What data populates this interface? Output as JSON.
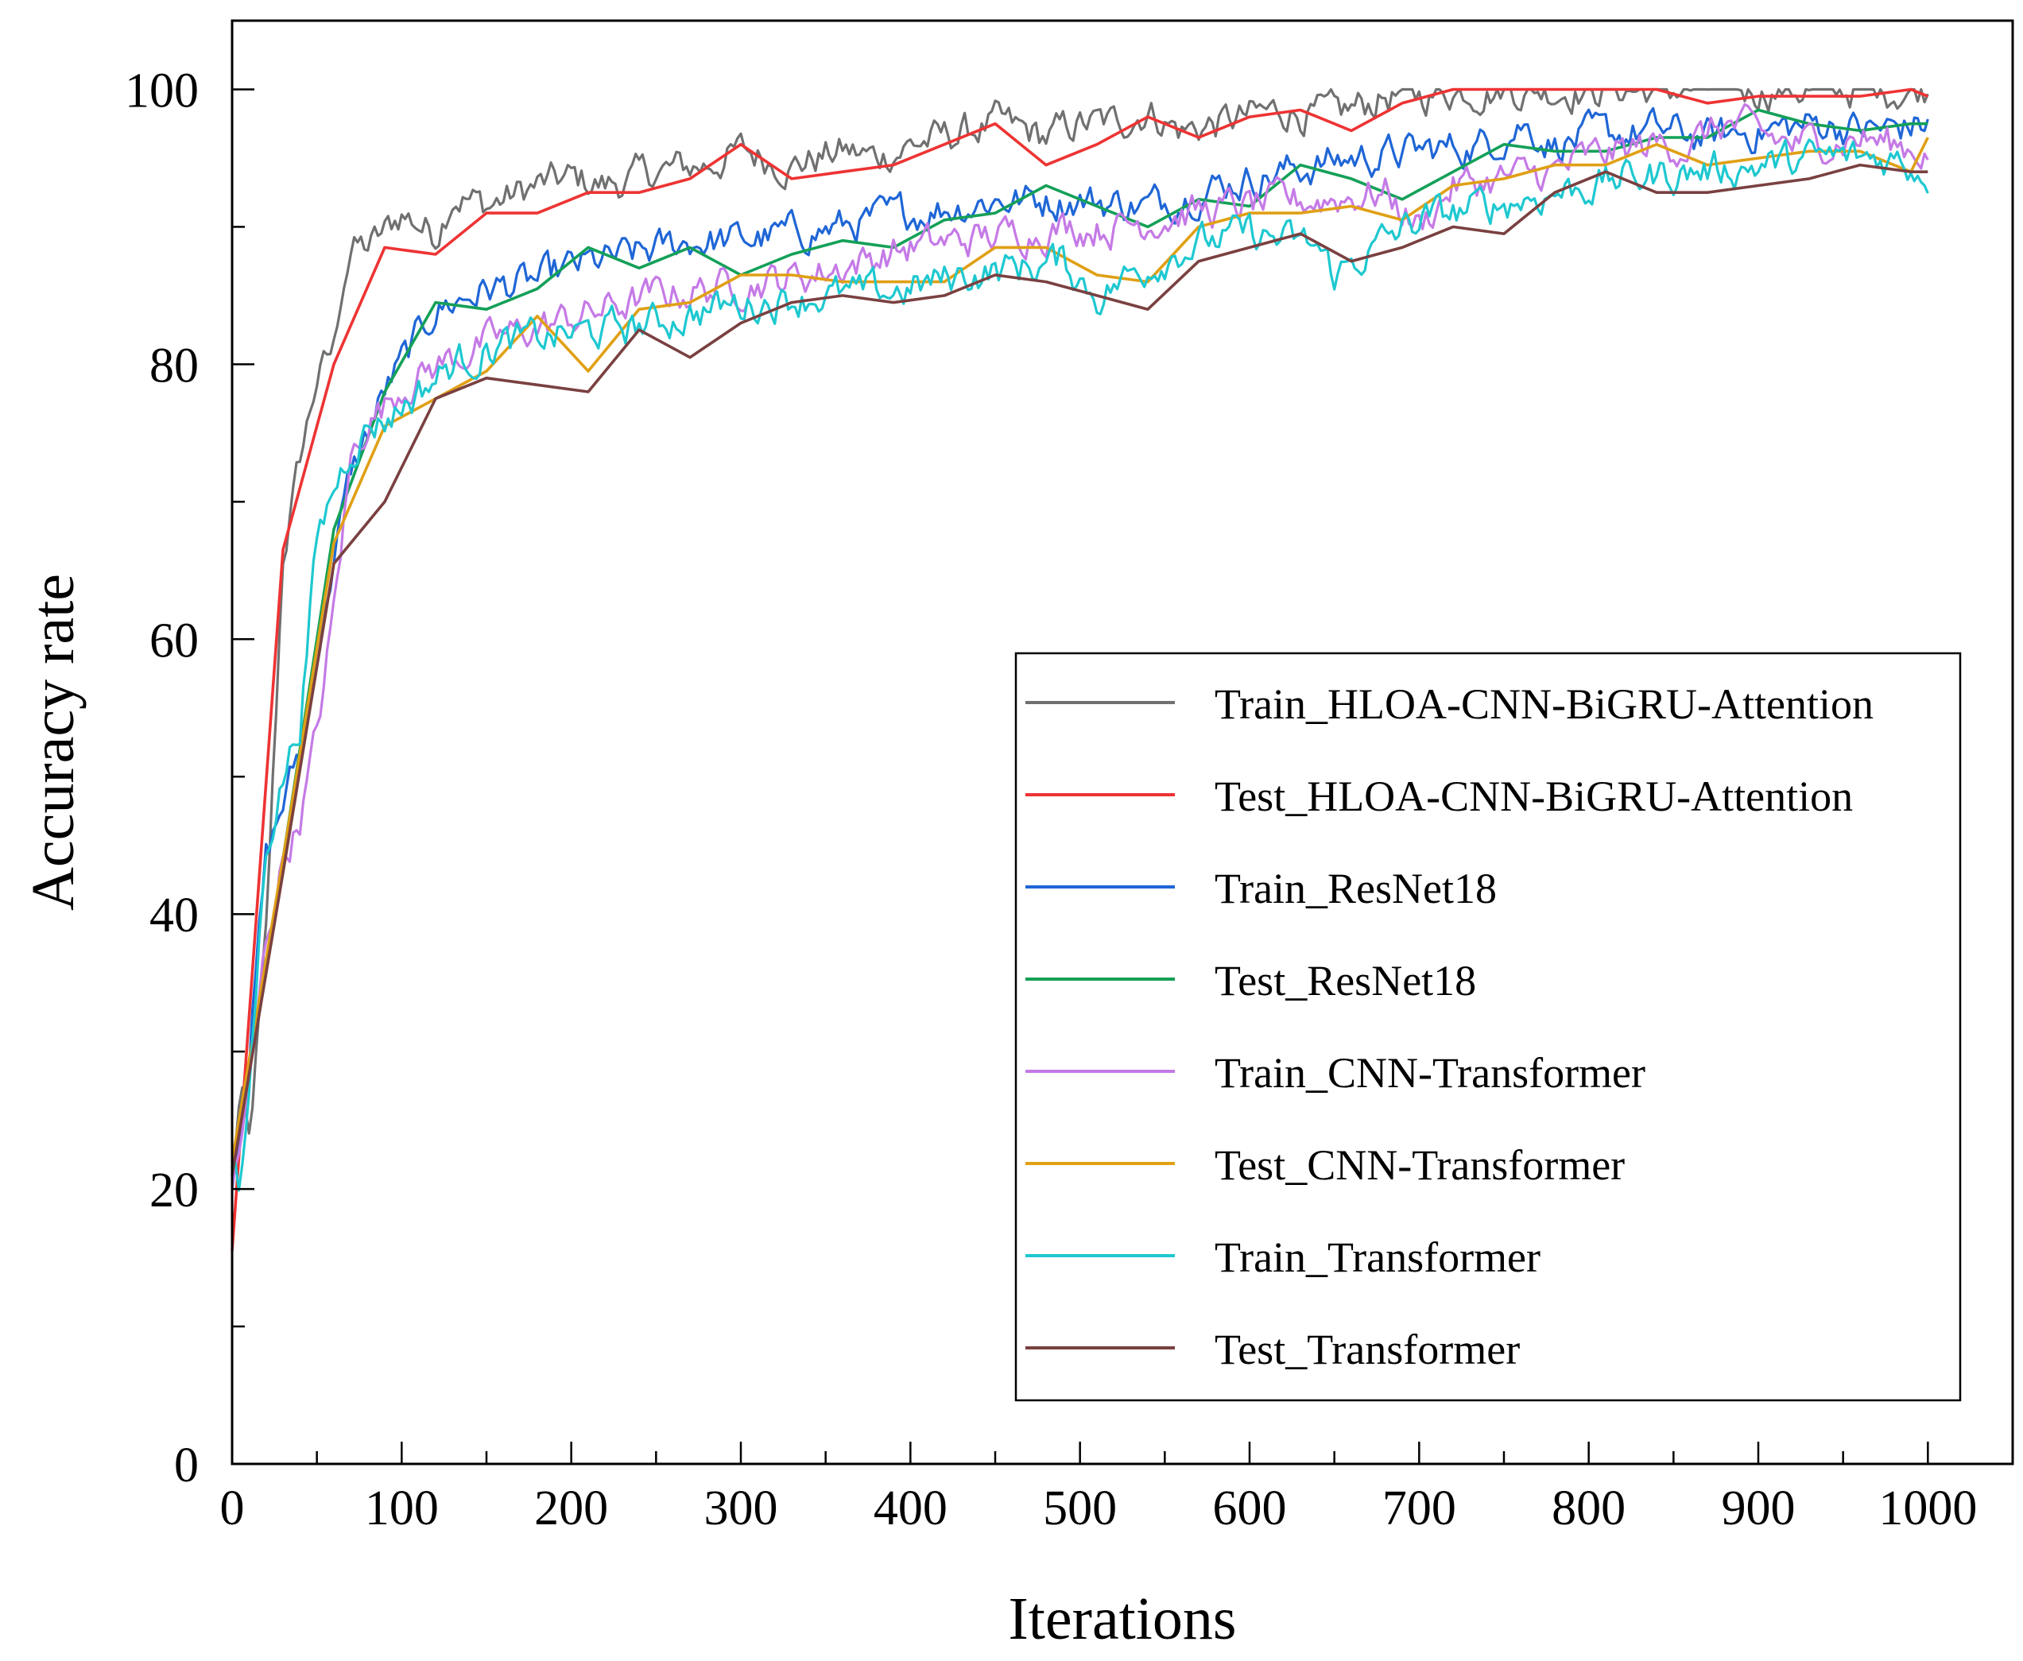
{
  "chart_data": {
    "type": "line",
    "title": "",
    "xlabel": "Iterations",
    "ylabel": "Accuracy rate",
    "xlim": [
      0,
      1050
    ],
    "ylim": [
      0,
      105
    ],
    "xticks": [
      0,
      100,
      200,
      300,
      400,
      500,
      600,
      700,
      800,
      900,
      1000
    ],
    "yticks": [
      0,
      20,
      40,
      60,
      80,
      100
    ],
    "x_tick_labels": [
      "0",
      "100",
      "200",
      "300",
      "400",
      "500",
      "600",
      "700",
      "800",
      "900",
      "1000"
    ],
    "y_tick_labels": [
      "0",
      "20",
      "40",
      "60",
      "80",
      "100"
    ],
    "grid": false,
    "legend_position": "center-right",
    "series": [
      {
        "name": "Train_HLOA-CNN-BiGRU-Attention",
        "color": "#707070",
        "x": [
          0,
          5,
          10,
          20,
          30,
          40,
          50,
          60,
          65,
          70,
          80,
          90,
          100,
          120,
          130,
          150,
          180,
          200,
          220,
          250,
          280,
          300,
          330,
          360,
          380,
          400,
          420,
          450,
          480,
          500,
          520,
          540,
          560,
          580,
          600,
          620,
          650,
          680,
          700,
          720,
          750,
          800,
          850,
          900,
          950,
          1000
        ],
        "y": [
          21,
          27,
          23,
          38,
          66,
          73,
          79,
          81,
          86,
          88.5,
          88.5,
          89.5,
          91,
          89.5,
          92.5,
          91.5,
          93,
          93.5,
          93,
          94,
          94.5,
          95.5,
          94.5,
          95.5,
          95,
          96,
          96.5,
          97.5,
          96.5,
          97.5,
          97.5,
          98.5,
          97,
          97.5,
          98,
          98.5,
          98,
          99.5,
          99.5,
          100,
          100,
          100,
          100,
          100,
          100,
          100
        ]
      },
      {
        "name": "Test_HLOA-CNN-BiGRU-Attention",
        "color": "#ee3333",
        "x": [
          0,
          30,
          60,
          90,
          120,
          150,
          180,
          210,
          240,
          270,
          300,
          330,
          360,
          390,
          420,
          450,
          480,
          510,
          540,
          570,
          600,
          630,
          660,
          690,
          720,
          750,
          780,
          810,
          840,
          870,
          900,
          930,
          960,
          990,
          1000
        ],
        "y": [
          15.5,
          66.5,
          80,
          88.5,
          88,
          91,
          91,
          92.5,
          92.5,
          93.5,
          96,
          93.5,
          94,
          94.5,
          96,
          97.5,
          94.5,
          96,
          98,
          96.5,
          98,
          98.5,
          97,
          99,
          100,
          100,
          100,
          100,
          100,
          99,
          99.5,
          99.5,
          99.5,
          100,
          99.5
        ]
      },
      {
        "name": "Train_ResNet18",
        "color": "#1f66d6",
        "x": [
          0,
          10,
          20,
          30,
          40,
          50,
          60,
          70,
          80,
          90,
          100,
          120,
          150,
          180,
          200,
          240,
          270,
          300,
          330,
          360,
          400,
          450,
          480,
          500,
          540,
          580,
          620,
          660,
          700,
          740,
          760,
          780,
          800,
          840,
          870,
          900,
          940,
          970,
          1000
        ],
        "y": [
          21,
          30,
          44,
          48,
          52,
          59,
          66,
          72,
          75,
          78,
          80,
          84,
          85.5,
          86,
          87,
          88,
          89,
          89,
          89.5,
          90,
          91,
          92,
          92,
          92,
          91.5,
          93,
          94,
          95,
          95.5,
          96,
          97.5,
          96,
          96.5,
          97,
          96.5,
          97,
          97.5,
          97,
          97.5
        ]
      },
      {
        "name": "Test_ResNet18",
        "color": "#14a058",
        "x": [
          0,
          30,
          60,
          90,
          120,
          150,
          180,
          210,
          240,
          270,
          300,
          330,
          360,
          390,
          420,
          450,
          480,
          510,
          540,
          570,
          600,
          630,
          660,
          690,
          720,
          750,
          780,
          810,
          840,
          870,
          900,
          930,
          960,
          990,
          1000
        ],
        "y": [
          21.5,
          44,
          68,
          78,
          84.5,
          84,
          85.5,
          88.5,
          87,
          88.5,
          86.5,
          88,
          89,
          88.5,
          90.5,
          91,
          93,
          91.5,
          90,
          92,
          91.5,
          94.5,
          93.5,
          92,
          94,
          96,
          95.5,
          95.5,
          96.5,
          96.5,
          98.5,
          97.5,
          97,
          97.5,
          97.5
        ]
      },
      {
        "name": "Train_CNN-Transformer",
        "color": "#c57ae6",
        "x": [
          0,
          10,
          20,
          30,
          40,
          50,
          60,
          70,
          80,
          90,
          100,
          130,
          160,
          190,
          220,
          250,
          280,
          310,
          340,
          370,
          400,
          430,
          460,
          490,
          520,
          560,
          600,
          640,
          680,
          700,
          720,
          750,
          780,
          800,
          840,
          860,
          880,
          920,
          960,
          1000
        ],
        "y": [
          20,
          27,
          38,
          44,
          47,
          53,
          62,
          73,
          76,
          77,
          78.5,
          80.5,
          82,
          83,
          84,
          85,
          85.5,
          86,
          86.5,
          87.5,
          88.5,
          89,
          89.5,
          90,
          90,
          91,
          91.5,
          92,
          92.5,
          90,
          93,
          93.5,
          94,
          95,
          96,
          96,
          97.5,
          96,
          96.5,
          95.5
        ]
      },
      {
        "name": "Test_CNN-Transformer",
        "color": "#e0a015",
        "x": [
          0,
          30,
          60,
          90,
          120,
          150,
          180,
          210,
          240,
          270,
          300,
          330,
          360,
          390,
          420,
          450,
          480,
          510,
          540,
          570,
          600,
          630,
          660,
          690,
          720,
          750,
          780,
          810,
          840,
          870,
          900,
          930,
          960,
          990,
          1000
        ],
        "y": [
          22,
          44,
          67,
          75.5,
          77.5,
          79.5,
          83.5,
          79.5,
          84,
          84.5,
          86.5,
          86.5,
          86,
          86,
          86,
          88.5,
          88.5,
          86.5,
          86,
          90,
          91,
          91,
          91.5,
          90.5,
          93,
          93.5,
          94.5,
          94.5,
          96,
          94.5,
          95,
          95.5,
          95.5,
          94,
          96.5
        ]
      },
      {
        "name": "Train_Transformer",
        "color": "#1ec8d0",
        "x": [
          0,
          5,
          10,
          20,
          30,
          40,
          50,
          60,
          70,
          80,
          90,
          100,
          130,
          160,
          190,
          220,
          250,
          280,
          310,
          340,
          370,
          400,
          430,
          460,
          490,
          510,
          530,
          560,
          600,
          640,
          650,
          680,
          700,
          740,
          780,
          820,
          860,
          900,
          940,
          980,
          1000
        ],
        "y": [
          22,
          19,
          27,
          45,
          50,
          54,
          67,
          71,
          74,
          75.5,
          76,
          77,
          80,
          81.5,
          82,
          82.5,
          83,
          84,
          84.5,
          85,
          85,
          85.5,
          86.5,
          87,
          87.5,
          85,
          86.5,
          88.5,
          89.5,
          88.5,
          86.5,
          89,
          90.5,
          91.5,
          92.5,
          93.5,
          94,
          94.5,
          95,
          95,
          94
        ]
      },
      {
        "name": "Test_Transformer",
        "color": "#7a4040",
        "x": [
          0,
          30,
          60,
          90,
          120,
          150,
          180,
          210,
          240,
          270,
          300,
          330,
          360,
          390,
          420,
          450,
          480,
          510,
          540,
          570,
          600,
          630,
          660,
          690,
          720,
          750,
          780,
          810,
          840,
          870,
          900,
          930,
          960,
          990,
          1000
        ],
        "y": [
          21,
          43,
          65.5,
          70,
          77.5,
          79,
          78.5,
          78,
          82.5,
          80.5,
          83,
          84.5,
          85,
          84.5,
          85,
          86.5,
          86,
          85,
          84,
          87.5,
          88.5,
          89.5,
          87.5,
          88.5,
          90,
          89.5,
          92.5,
          94,
          92.5,
          92.5,
          93,
          93.5,
          94.5,
          94,
          94
        ]
      }
    ]
  }
}
